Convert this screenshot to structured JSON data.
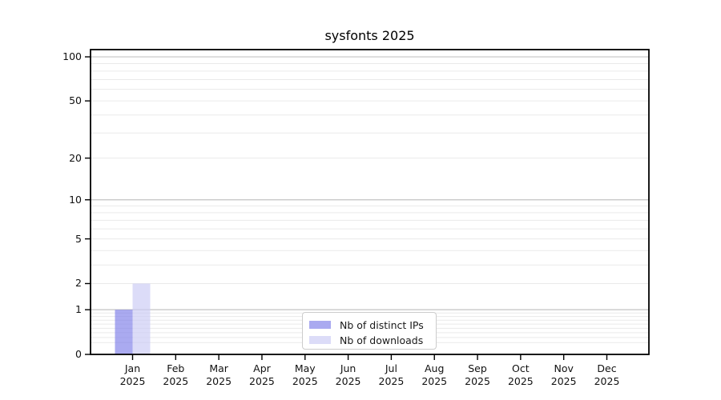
{
  "figure": {
    "background": "#ffffff"
  },
  "chart_data": {
    "type": "bar",
    "title": "sysfonts 2025",
    "categories": [
      "Jan",
      "Feb",
      "Mar",
      "Apr",
      "May",
      "Jun",
      "Jul",
      "Aug",
      "Sep",
      "Oct",
      "Nov",
      "Dec"
    ],
    "category_year": "2025",
    "series": [
      {
        "name": "Nb of distinct IPs",
        "color": "#aaaaf0",
        "values": [
          1,
          0,
          0,
          0,
          0,
          0,
          0,
          0,
          0,
          0,
          0,
          0
        ]
      },
      {
        "name": "Nb of downloads",
        "color": "#dcdcf8",
        "values": [
          2,
          0,
          0,
          0,
          0,
          0,
          0,
          0,
          0,
          0,
          0,
          0
        ]
      }
    ],
    "yscale": "log1p",
    "ylim": [
      0,
      112
    ],
    "yticks": [
      0,
      1,
      2,
      5,
      10,
      20,
      50,
      100
    ],
    "major_grid_values": [
      1,
      10,
      100
    ],
    "minor_grid_values": [
      0.2,
      0.3,
      0.4,
      0.5,
      0.6,
      0.7,
      0.8,
      0.9,
      3,
      4,
      6,
      7,
      8,
      9,
      30,
      40,
      60,
      70,
      80,
      90
    ],
    "grid": true,
    "legend_position": "lower-center",
    "bar_alpha": 0.66,
    "colors": {
      "major_grid": "#c3c3c3",
      "minor_grid": "#eaeaea",
      "spine": "#000000",
      "text": "#111111",
      "legend_border": "#cccccc"
    }
  }
}
